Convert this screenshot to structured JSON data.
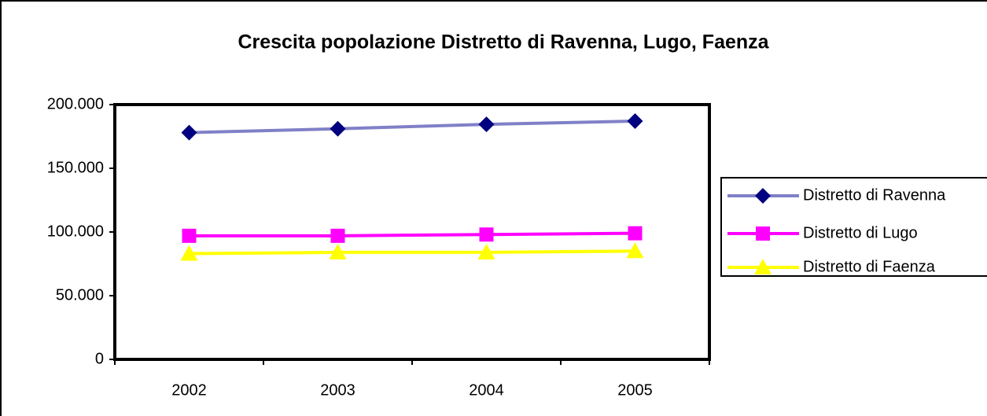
{
  "chart_data": {
    "type": "line",
    "title": "Crescita popolazione Distretto di Ravenna, Lugo, Faenza",
    "categories": [
      "2002",
      "2003",
      "2004",
      "2005"
    ],
    "series": [
      {
        "name": "Distretto di Ravenna",
        "color": "#8080c8",
        "marker": "diamond",
        "marker_color": "#000080",
        "values": [
          178000,
          181000,
          184500,
          187000
        ]
      },
      {
        "name": "Distretto di Lugo",
        "color": "#ff00ff",
        "marker": "square",
        "marker_color": "#ff00ff",
        "values": [
          97000,
          97000,
          98000,
          99000
        ]
      },
      {
        "name": "Distretto di Faenza",
        "color": "#ffff00",
        "marker": "triangle",
        "marker_color": "#ffff00",
        "values": [
          83000,
          84000,
          84000,
          85000
        ]
      }
    ],
    "ylim": [
      0,
      200000
    ],
    "yticks": [
      0,
      {
        "value": 50000,
        "label": "50.000"
      },
      {
        "value": 100000,
        "label": "100.000"
      },
      {
        "value": 150000,
        "label": "150.000"
      },
      {
        "value": 200000,
        "label": "200.000"
      }
    ],
    "grid": false,
    "legend": "right"
  }
}
